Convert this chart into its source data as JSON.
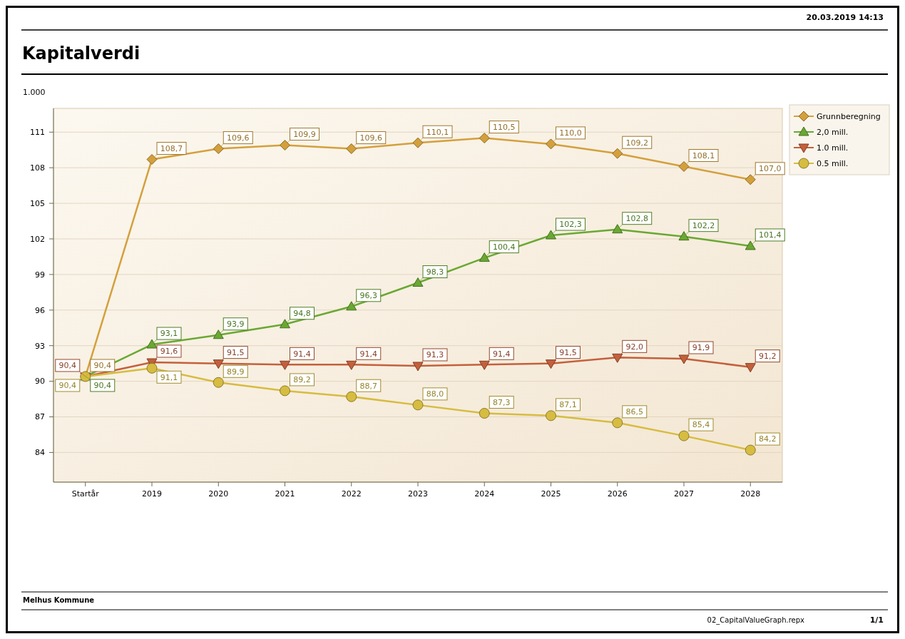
{
  "chart_data": {
    "type": "line",
    "title": "Kapitalverdi",
    "ylabel": "1.000",
    "annotations": [
      "20.03.2019 14:13",
      "Melhus Kommune",
      "02_CapitalValueGraph.repx",
      "1/1"
    ],
    "categories": [
      "Startår",
      "2019",
      "2020",
      "2021",
      "2022",
      "2023",
      "2024",
      "2025",
      "2026",
      "2027",
      "2028"
    ],
    "series": [
      {
        "name": "Grunnberegning",
        "color": "#d4a03c",
        "marker": "diamond",
        "values": [
          90.4,
          108.7,
          109.6,
          109.9,
          109.6,
          110.1,
          110.5,
          110.0,
          109.2,
          108.1,
          107.0
        ],
        "value_labels": [
          "90,4",
          "108,7",
          "109,6",
          "109,9",
          "109,6",
          "110,1",
          "110,5",
          "110,0",
          "109,2",
          "108,1",
          "107,0"
        ]
      },
      {
        "name": "2,0 mill.",
        "color": "#6aa832",
        "marker": "triangle",
        "values": [
          90.4,
          93.1,
          93.9,
          94.8,
          96.3,
          98.3,
          100.4,
          102.3,
          102.8,
          102.2,
          101.4
        ],
        "value_labels": [
          "90,4",
          "93,1",
          "93,9",
          "94,8",
          "96,3",
          "98,3",
          "100,4",
          "102,3",
          "102,8",
          "102,2",
          "101,4"
        ]
      },
      {
        "name": "1.0 mill.",
        "color": "#c4603c",
        "marker": "triangle-down",
        "values": [
          90.4,
          91.6,
          91.5,
          91.4,
          91.4,
          91.3,
          91.4,
          91.5,
          92.0,
          91.9,
          91.2
        ],
        "value_labels": [
          "90,4",
          "91,6",
          "91,5",
          "91,4",
          "91,4",
          "91,3",
          "91,4",
          "91,5",
          "92,0",
          "91,9",
          "91,2"
        ]
      },
      {
        "name": "0.5 mill.",
        "color": "#d6bc40",
        "marker": "circle",
        "values": [
          90.4,
          91.1,
          89.9,
          89.2,
          88.7,
          88.0,
          87.3,
          87.1,
          86.5,
          85.4,
          84.2
        ],
        "value_labels": [
          "90,4",
          "91,1",
          "89,9",
          "89,2",
          "88,7",
          "88,0",
          "87,3",
          "87,1",
          "86,5",
          "85,4",
          "84,2"
        ]
      }
    ],
    "ylim": [
      81.5,
      113
    ],
    "yticks": [
      84,
      87,
      90,
      93,
      96,
      99,
      102,
      105,
      108,
      111
    ],
    "grid": "y",
    "legend": "top right",
    "line_style": "solid"
  }
}
